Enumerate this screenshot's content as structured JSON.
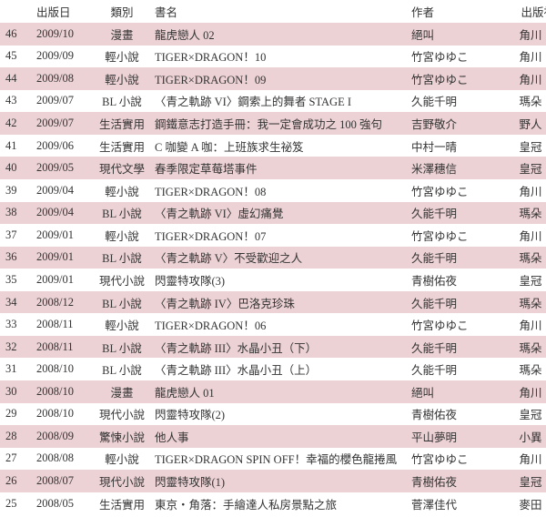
{
  "headers": {
    "no": "",
    "date": "出版日",
    "category": "類別",
    "title": "書名",
    "author": "作者",
    "publisher": "出版社"
  },
  "row_color": "#ecd2d5",
  "rows": [
    {
      "no": "46",
      "date": "2009/10",
      "category": "漫畫",
      "title": "龍虎戀人 02",
      "author": "絕叫",
      "publisher": "角川"
    },
    {
      "no": "45",
      "date": "2009/09",
      "category": "輕小說",
      "title": "TIGER×DRAGON！10",
      "author": "竹宮ゆゆこ",
      "publisher": "角川"
    },
    {
      "no": "44",
      "date": "2009/08",
      "category": "輕小說",
      "title": "TIGER×DRAGON！09",
      "author": "竹宮ゆゆこ",
      "publisher": "角川"
    },
    {
      "no": "43",
      "date": "2009/07",
      "category": "BL 小說",
      "title": "〈青之軌跡 VI〉鋼索上的舞者 STAGE I",
      "author": "久能千明",
      "publisher": "瑪朵"
    },
    {
      "no": "42",
      "date": "2009/07",
      "category": "生活實用",
      "title": "鋼鐵意志打造手冊：我一定會成功之 100 強句",
      "author": "吉野敬介",
      "publisher": "野人"
    },
    {
      "no": "41",
      "date": "2009/06",
      "category": "生活實用",
      "title": "C 咖變 A 咖：上班族求生祕笈",
      "author": "中村一晴",
      "publisher": "皇冠"
    },
    {
      "no": "40",
      "date": "2009/05",
      "category": "現代文學",
      "title": "春季限定草莓塔事件",
      "author": "米澤穗信",
      "publisher": "皇冠"
    },
    {
      "no": "39",
      "date": "2009/04",
      "category": "輕小說",
      "title": "TIGER×DRAGON！08",
      "author": "竹宮ゆゆこ",
      "publisher": "角川"
    },
    {
      "no": "38",
      "date": "2009/04",
      "category": "BL 小說",
      "title": "〈青之軌跡 VI〉虛幻痛覺",
      "author": "久能千明",
      "publisher": "瑪朵"
    },
    {
      "no": "37",
      "date": "2009/01",
      "category": "輕小說",
      "title": "TIGER×DRAGON！07",
      "author": "竹宮ゆゆこ",
      "publisher": "角川"
    },
    {
      "no": "36",
      "date": "2009/01",
      "category": "BL 小說",
      "title": "〈青之軌跡 V〉不受歡迎之人",
      "author": "久能千明",
      "publisher": "瑪朵"
    },
    {
      "no": "35",
      "date": "2009/01",
      "category": "現代小說",
      "title": "閃靈特攻隊(3)",
      "author": "青樹佑夜",
      "publisher": "皇冠"
    },
    {
      "no": "34",
      "date": "2008/12",
      "category": "BL 小說",
      "title": "〈青之軌跡 IV〉巴洛克珍珠",
      "author": "久能千明",
      "publisher": "瑪朵"
    },
    {
      "no": "33",
      "date": "2008/11",
      "category": "輕小說",
      "title": "TIGER×DRAGON！06",
      "author": "竹宮ゆゆこ",
      "publisher": "角川"
    },
    {
      "no": "32",
      "date": "2008/11",
      "category": "BL 小說",
      "title": "〈青之軌跡 III〉水晶小丑（下）",
      "author": "久能千明",
      "publisher": "瑪朵"
    },
    {
      "no": "31",
      "date": "2008/10",
      "category": "BL 小說",
      "title": "〈青之軌跡 III〉水晶小丑（上）",
      "author": "久能千明",
      "publisher": "瑪朵"
    },
    {
      "no": "30",
      "date": "2008/10",
      "category": "漫畫",
      "title": "龍虎戀人 01",
      "author": "絕叫",
      "publisher": "角川"
    },
    {
      "no": "29",
      "date": "2008/10",
      "category": "現代小說",
      "title": "閃靈特攻隊(2)",
      "author": "青樹佑夜",
      "publisher": "皇冠"
    },
    {
      "no": "28",
      "date": "2008/09",
      "category": "驚悚小說",
      "title": "他人事",
      "author": "平山夢明",
      "publisher": "小異"
    },
    {
      "no": "27",
      "date": "2008/08",
      "category": "輕小說",
      "title": "TIGER×DRAGON SPIN OFF！幸福的櫻色龍捲風",
      "author": "竹宮ゆゆこ",
      "publisher": "角川"
    },
    {
      "no": "26",
      "date": "2008/07",
      "category": "現代小說",
      "title": "閃靈特攻隊(1)",
      "author": "青樹佑夜",
      "publisher": "皇冠"
    },
    {
      "no": "25",
      "date": "2008/05",
      "category": "生活實用",
      "title": "東京・角落：手繪達人私房景點之旅",
      "author": "菅澤佳代",
      "publisher": "麥田"
    }
  ]
}
